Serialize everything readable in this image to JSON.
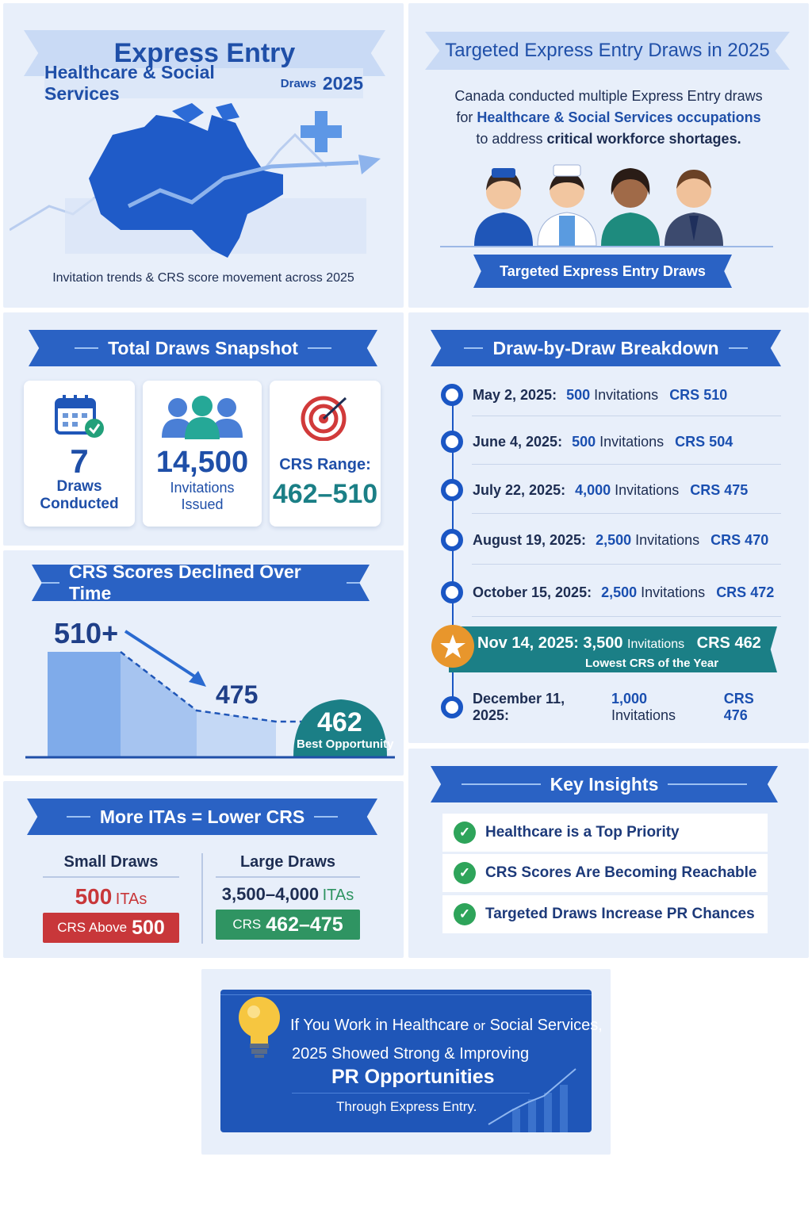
{
  "hero": {
    "title": "Express Entry",
    "subtitle_part1": "Healthcare & Social Services",
    "subtitle_small": "Draws",
    "subtitle_year": "2025",
    "caption": "Invitation trends & CRS score movement across 2025"
  },
  "targeted": {
    "title": "Targeted Express Entry Draws in 2025",
    "line1": "Canada conducted multiple Express Entry draws",
    "line2_prefix": "for ",
    "line2_bold": "Healthcare & Social Services occupations",
    "line3_prefix": "to address ",
    "line3_bold": "critical workforce shortages.",
    "banner": "Targeted Express Entry Draws"
  },
  "snapshot": {
    "title": "Total Draws Snapshot",
    "draws_value": "7",
    "draws_label_1": "Draws",
    "draws_label_2": "Conducted",
    "inv_value": "14,500",
    "inv_label_1": "Invitations",
    "inv_label_2": "Issued",
    "crs_label": "CRS Range:",
    "crs_value": "462–510"
  },
  "decline": {
    "title": "CRS Scores Declined Over Time",
    "start": "510+",
    "mid": "475",
    "end": "462",
    "end_note": "Best Opportunity"
  },
  "itas": {
    "title": "More ITAs = Lower CRS",
    "small_title": "Small Draws",
    "small_num": "500",
    "small_unit": "ITAs",
    "small_badge_prefix": "CRS Above",
    "small_badge_num": "500",
    "large_title": "Large Draws",
    "large_num": "3,500–4,000",
    "large_unit": "ITAs",
    "large_badge_prefix": "CRS",
    "large_badge_num": "462–475"
  },
  "breakdown": {
    "title": "Draw-by-Draw Breakdown",
    "rows": [
      {
        "date": "May 2, 2025:",
        "num": "500",
        "inv": "Invitations",
        "crs": "CRS 510"
      },
      {
        "date": "June 4, 2025:",
        "num": "500",
        "inv": "Invitations",
        "crs": "CRS 504"
      },
      {
        "date": "July 22, 2025:",
        "num": "4,000",
        "inv": "Invitations",
        "crs": "CRS 475"
      },
      {
        "date": "August 19, 2025:",
        "num": "2,500",
        "inv": "Invitations",
        "crs": "CRS 470"
      },
      {
        "date": "October 15, 2025:",
        "num": "2,500",
        "inv": "Invitations",
        "crs": "CRS 472"
      },
      {
        "date": "December 11, 2025:",
        "num": "1,000",
        "inv": "Invitations",
        "crs": "CRS 476"
      }
    ],
    "highlight": {
      "date": "Nov 14, 2025:",
      "num": "3,500",
      "inv": "Invitations",
      "crs": "CRS 462",
      "note": "Lowest CRS of the Year"
    }
  },
  "insights": {
    "title": "Key Insights",
    "items": [
      "Healthcare is a Top Priority",
      "CRS Scores Are Becoming Reachable",
      "Targeted Draws Increase PR Chances"
    ]
  },
  "footer": {
    "line1_a": "If You Work in Healthcare",
    "line1_b": "or",
    "line1_c": "Social Services,",
    "line2": "2025 Showed Strong & Improving",
    "line3": "PR Opportunities",
    "line4": "Through Express Entry."
  },
  "colors": {
    "primary": "#2a62c4",
    "teal": "#1b7f86",
    "red": "#c8373a",
    "green": "#2f9462",
    "panel": "#e8effa"
  }
}
